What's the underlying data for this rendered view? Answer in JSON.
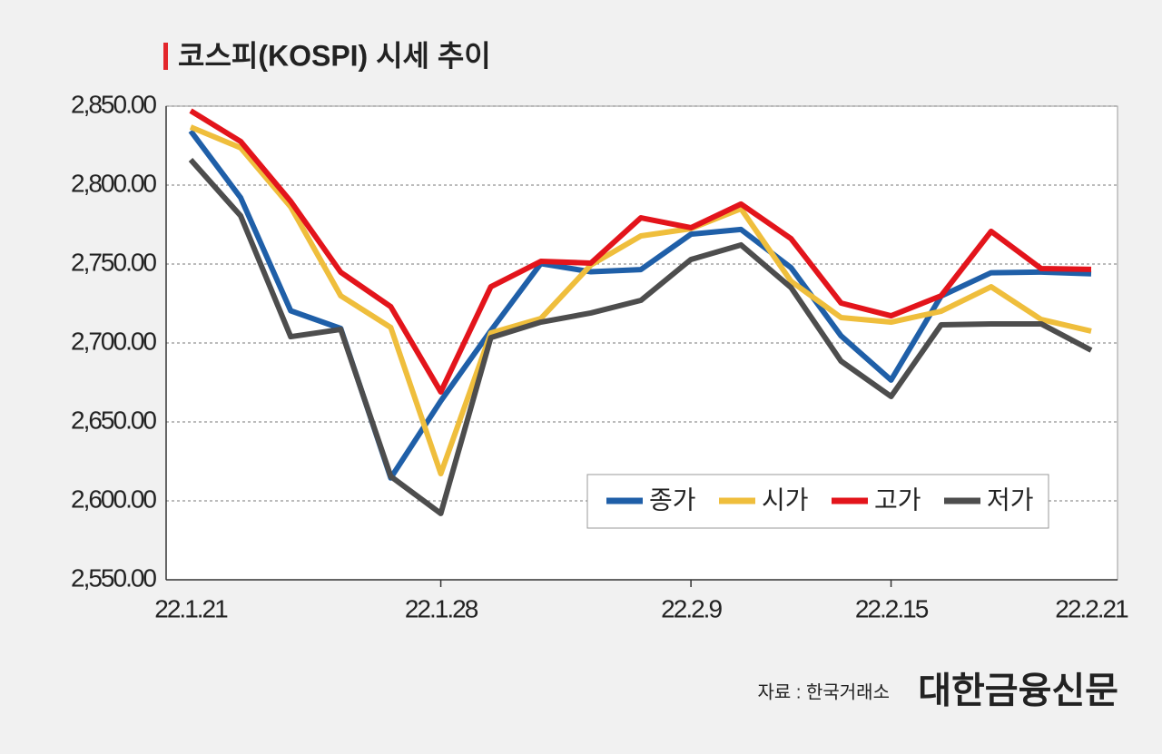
{
  "chart_data": {
    "type": "line",
    "title": "코스피(KOSPI) 시세 추이",
    "categories": [
      "22.1.21",
      null,
      null,
      null,
      null,
      "22.1.28",
      null,
      null,
      null,
      null,
      "22.2.9",
      null,
      null,
      null,
      "22.2.15",
      null,
      null,
      null,
      "22.2.21"
    ],
    "series": [
      {
        "name": "종가",
        "color": "#1f5fa8",
        "values": [
          2834.3,
          2792.0,
          2720.4,
          2709.2,
          2614.5,
          2663.3,
          2707.8,
          2750.3,
          2745.1,
          2746.5,
          2768.9,
          2771.9,
          2747.7,
          2704.5,
          2676.5,
          2729.7,
          2744.5,
          2744.9,
          2743.8
        ]
      },
      {
        "name": "시가",
        "color": "#efbe3c",
        "values": [
          2836.8,
          2823.6,
          2786.2,
          2729.9,
          2709.8,
          2617.2,
          2706.3,
          2715.5,
          2749.4,
          2767.8,
          2772.4,
          2785.0,
          2739.1,
          2716.1,
          2713.2,
          2720.1,
          2735.6,
          2714.9,
          2707.5
        ]
      },
      {
        "name": "고가",
        "color": "#e3141b",
        "values": [
          2847.1,
          2827.6,
          2789.7,
          2744.8,
          2723.0,
          2669.0,
          2735.6,
          2751.7,
          2750.6,
          2779.3,
          2773.0,
          2788.0,
          2766.1,
          2725.3,
          2717.2,
          2729.9,
          2770.7,
          2747.1,
          2746.6
        ]
      },
      {
        "name": "저가",
        "color": "#4d4d4d",
        "values": [
          2816.1,
          2780.5,
          2704.0,
          2708.6,
          2615.5,
          2592.0,
          2703.4,
          2713.2,
          2719.0,
          2727.0,
          2752.9,
          2762.1,
          2735.1,
          2688.5,
          2666.1,
          2711.5,
          2712.1,
          2712.1,
          2695.4
        ]
      }
    ],
    "ylim": [
      2550,
      2850
    ],
    "yticks": [
      {
        "value": 2550,
        "label": "2,550.00"
      },
      {
        "value": 2600,
        "label": "2,600.00"
      },
      {
        "value": 2650,
        "label": "2,650.00"
      },
      {
        "value": 2700,
        "label": "2,700.00"
      },
      {
        "value": 2750,
        "label": "2,750.00"
      },
      {
        "value": 2800,
        "label": "2,800.00"
      },
      {
        "value": 2850,
        "label": "2,850.00"
      }
    ],
    "grid": true,
    "legend": "lower right"
  },
  "source": "자료 : 한국거래소",
  "publisher": "대한금융신문"
}
